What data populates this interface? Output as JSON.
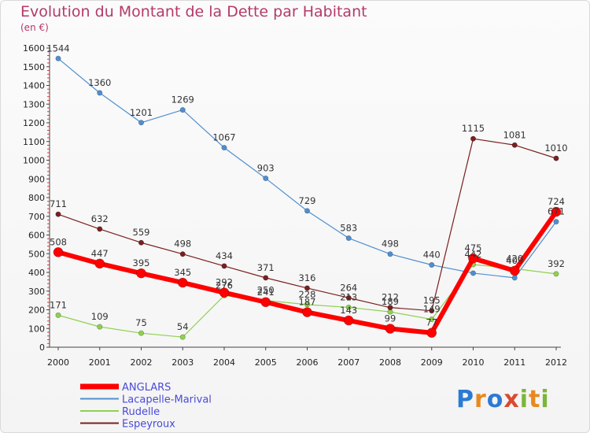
{
  "header": {
    "title": "Evolution du Montant de la Dette par Habitant",
    "subtitle": "(en €)"
  },
  "logo": {
    "text": "Proxiti"
  },
  "chart_data": {
    "type": "line",
    "title": "Evolution du Montant de la Dette par Habitant",
    "subtitle": "(en €)",
    "x": [
      "2000",
      "2001",
      "2002",
      "2003",
      "2004",
      "2005",
      "2006",
      "2007",
      "2008",
      "2009",
      "2010",
      "2011",
      "2012"
    ],
    "y_ticks": [
      0,
      100,
      200,
      300,
      400,
      500,
      600,
      700,
      800,
      900,
      1000,
      1100,
      1200,
      1300,
      1400,
      1500,
      1600
    ],
    "ylim": [
      0,
      1600
    ],
    "grid": false,
    "legend_position": "bottom-left",
    "series": [
      {
        "name": "Lacapelle-Marival",
        "color": "#4f8fd0",
        "values": [
          1544,
          1360,
          1201,
          1269,
          1067,
          903,
          729,
          583,
          498,
          440,
          396,
          371,
          671
        ],
        "labels": [
          "1544",
          "1360",
          "1201",
          "1269",
          "1067",
          "903",
          "729",
          "583",
          "498",
          "440",
          "",
          "",
          "671"
        ]
      },
      {
        "name": "Rudelle",
        "color": "#8fd14f",
        "values": [
          171,
          109,
          75,
          54,
          276,
          250,
          228,
          213,
          189,
          149,
          442,
          420,
          392
        ],
        "labels": [
          "171",
          "109",
          "75",
          "54",
          "276",
          "250",
          "228",
          "213",
          "189",
          "149",
          "442",
          "420",
          "392"
        ]
      },
      {
        "name": "Espeyroux",
        "color": "#7a1f1f",
        "values": [
          711,
          632,
          559,
          498,
          434,
          371,
          316,
          264,
          212,
          195,
          1115,
          1081,
          1010
        ],
        "labels": [
          "711",
          "632",
          "559",
          "498",
          "434",
          "371",
          "316",
          "264",
          "212",
          "195",
          "1115",
          "1081",
          "1010"
        ]
      },
      {
        "name": "ANGLARS",
        "color": "#ff0000",
        "values": [
          508,
          447,
          395,
          345,
          292,
          241,
          187,
          143,
          99,
          77,
          475,
          409,
          724
        ],
        "labels": [
          "508",
          "447",
          "395",
          "345",
          "292",
          "241",
          "187",
          "143",
          "99",
          "77",
          "475",
          "409",
          "724"
        ]
      }
    ],
    "legend": [
      {
        "name": "ANGLARS",
        "color": "#ff0000"
      },
      {
        "name": "Lacapelle-Marival",
        "color": "#4f8fd0"
      },
      {
        "name": "Rudelle",
        "color": "#8fd14f"
      },
      {
        "name": "Espeyroux",
        "color": "#7a1f1f"
      }
    ]
  }
}
